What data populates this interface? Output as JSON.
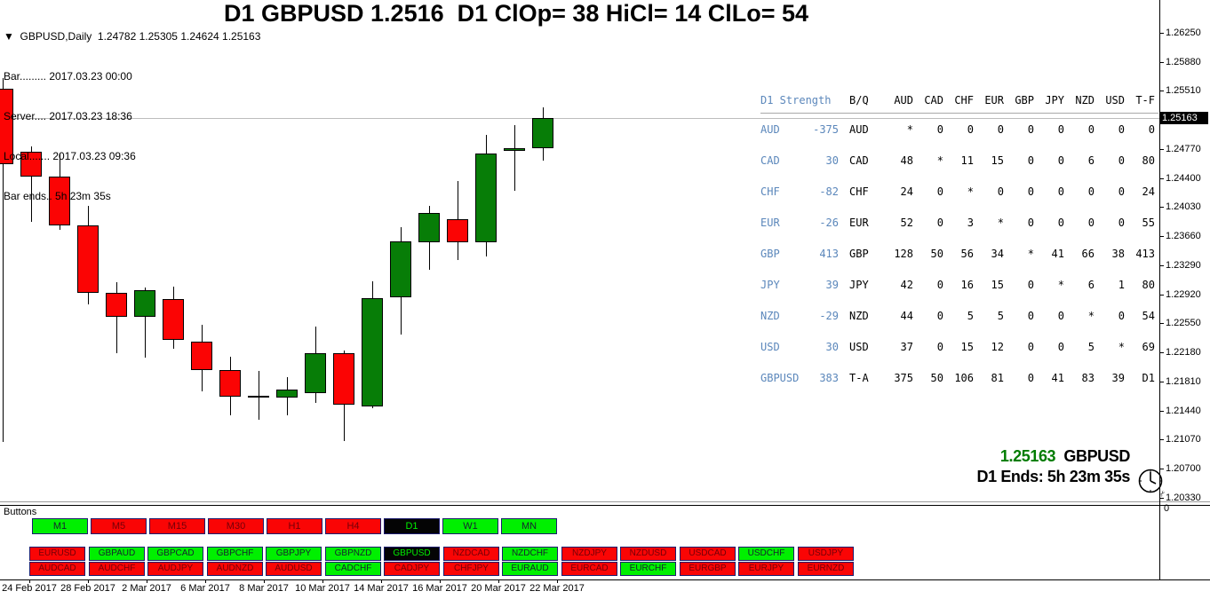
{
  "info": {
    "symbol_line": "▼  GBPUSD,Daily  1.24782 1.25305 1.24624 1.25163",
    "lines": [
      "Bar......... 2017.03.23 00:00",
      "Server.... 2017.03.23 18:36",
      "Local....... 2017.03.23 09:36",
      "Bar ends.. 5h 23m 35s"
    ]
  },
  "title": "D1 GBPUSD 1.2516  D1 ClOp= 38 HiCl= 14 ClLo= 54",
  "chart_data": {
    "type": "candlestick",
    "symbol": "GBPUSD",
    "timeframe": "Daily",
    "ohlc_current": {
      "open": 1.24782,
      "high": 1.25305,
      "low": 1.24624,
      "close": 1.25163
    },
    "y_axis": {
      "ticks": [
        "1.26250",
        "1.25880",
        "1.25510",
        "1.24770",
        "1.24400",
        "1.24030",
        "1.23660",
        "1.23290",
        "1.22920",
        "1.22550",
        "1.22180",
        "1.21810",
        "1.21440",
        "1.21070",
        "1.20700",
        "1.20330"
      ],
      "current_price": "1.25163",
      "range": [
        1.2033,
        1.2625
      ]
    },
    "x_axis": {
      "labels": [
        "24 Feb 2017",
        "28 Feb 2017",
        "2 Mar 2017",
        "6 Mar 2017",
        "8 Mar 2017",
        "10 Mar 2017",
        "14 Mar 2017",
        "16 Mar 2017",
        "20 Mar 2017",
        "22 Mar 2017"
      ]
    },
    "sub_scale_label": "0",
    "candles": [
      {
        "date": "24 Feb 2017",
        "o": 1.25538,
        "h": 1.25674,
        "l": 1.21041,
        "c": 1.24578,
        "dir": "down"
      },
      {
        "date": "27 Feb 2017",
        "o": 1.24736,
        "h": 1.24804,
        "l": 1.23844,
        "c": 1.2442,
        "dir": "down"
      },
      {
        "date": "28 Feb 2017",
        "o": 1.2442,
        "h": 1.24713,
        "l": 1.23742,
        "c": 1.23799,
        "dir": "down"
      },
      {
        "date": "1 Mar 2017",
        "o": 1.23799,
        "h": 1.24047,
        "l": 1.22793,
        "c": 1.2294,
        "dir": "down"
      },
      {
        "date": "2 Mar 2017",
        "o": 1.2294,
        "h": 1.23075,
        "l": 1.22172,
        "c": 1.22635,
        "dir": "down"
      },
      {
        "date": "3 Mar 2017",
        "o": 1.22635,
        "h": 1.23008,
        "l": 1.22115,
        "c": 1.22974,
        "dir": "up"
      },
      {
        "date": "6 Mar 2017",
        "o": 1.22861,
        "h": 1.23019,
        "l": 1.22228,
        "c": 1.22341,
        "dir": "down"
      },
      {
        "date": "7 Mar 2017",
        "o": 1.22318,
        "h": 1.22533,
        "l": 1.21686,
        "c": 1.21957,
        "dir": "down"
      },
      {
        "date": "8 Mar 2017",
        "o": 1.21957,
        "h": 1.22127,
        "l": 1.2138,
        "c": 1.21618,
        "dir": "down"
      },
      {
        "date": "9 Mar 2017",
        "o": 1.21629,
        "h": 1.21945,
        "l": 1.21324,
        "c": 1.21629,
        "dir": "doji"
      },
      {
        "date": "10 Mar 2017",
        "o": 1.21606,
        "h": 1.21866,
        "l": 1.2138,
        "c": 1.21708,
        "dir": "up"
      },
      {
        "date": "13 Mar 2017",
        "o": 1.21663,
        "h": 1.2251,
        "l": 1.21539,
        "c": 1.22172,
        "dir": "up"
      },
      {
        "date": "14 Mar 2017",
        "o": 1.22172,
        "h": 1.22205,
        "l": 1.21053,
        "c": 1.21516,
        "dir": "down"
      },
      {
        "date": "15 Mar 2017",
        "o": 1.21494,
        "h": 1.23087,
        "l": 1.21471,
        "c": 1.22872,
        "dir": "up"
      },
      {
        "date": "16 Mar 2017",
        "o": 1.22883,
        "h": 1.23776,
        "l": 1.22409,
        "c": 1.23595,
        "dir": "up"
      },
      {
        "date": "17 Mar 2017",
        "o": 1.23584,
        "h": 1.24047,
        "l": 1.23234,
        "c": 1.23957,
        "dir": "up"
      },
      {
        "date": "20 Mar 2017",
        "o": 1.23878,
        "h": 1.24363,
        "l": 1.23358,
        "c": 1.23584,
        "dir": "down"
      },
      {
        "date": "21 Mar 2017",
        "o": 1.23584,
        "h": 1.2495,
        "l": 1.23403,
        "c": 1.24713,
        "dir": "up"
      },
      {
        "date": "22 Mar 2017",
        "o": 1.24747,
        "h": 1.25075,
        "l": 1.24239,
        "c": 1.24781,
        "dir": "up"
      },
      {
        "date": "23 Mar 2017",
        "o": 1.24782,
        "h": 1.25305,
        "l": 1.24624,
        "c": 1.25163,
        "dir": "up"
      }
    ]
  },
  "strength_table": {
    "header": [
      "D1 Strength",
      "B/Q",
      "AUD",
      "CAD",
      "CHF",
      "EUR",
      "GBP",
      "JPY",
      "NZD",
      "USD",
      "T-F"
    ],
    "rows": [
      {
        "cur": "AUD",
        "strength": "-375",
        "bq": "AUD",
        "cells": [
          "*",
          "0",
          "0",
          "0",
          "0",
          "0",
          "0",
          "0",
          "0"
        ]
      },
      {
        "cur": "CAD",
        "strength": "30",
        "bq": "CAD",
        "cells": [
          "48",
          "*",
          "11",
          "15",
          "0",
          "0",
          "6",
          "0",
          "80"
        ]
      },
      {
        "cur": "CHF",
        "strength": "-82",
        "bq": "CHF",
        "cells": [
          "24",
          "0",
          "*",
          "0",
          "0",
          "0",
          "0",
          "0",
          "24"
        ]
      },
      {
        "cur": "EUR",
        "strength": "-26",
        "bq": "EUR",
        "cells": [
          "52",
          "0",
          "3",
          "*",
          "0",
          "0",
          "0",
          "0",
          "55"
        ]
      },
      {
        "cur": "GBP",
        "strength": "413",
        "bq": "GBP",
        "cells": [
          "128",
          "50",
          "56",
          "34",
          "*",
          "41",
          "66",
          "38",
          "413"
        ]
      },
      {
        "cur": "JPY",
        "strength": "39",
        "bq": "JPY",
        "cells": [
          "42",
          "0",
          "16",
          "15",
          "0",
          "*",
          "6",
          "1",
          "80"
        ]
      },
      {
        "cur": "NZD",
        "strength": "-29",
        "bq": "NZD",
        "cells": [
          "44",
          "0",
          "5",
          "5",
          "0",
          "0",
          "*",
          "0",
          "54"
        ]
      },
      {
        "cur": "USD",
        "strength": "30",
        "bq": "USD",
        "cells": [
          "37",
          "0",
          "15",
          "12",
          "0",
          "0",
          "5",
          "*",
          "69"
        ]
      },
      {
        "cur": "GBPUSD",
        "strength": "383",
        "bq": "T-A",
        "cells": [
          "375",
          "50",
          "106",
          "81",
          "0",
          "41",
          "83",
          "39",
          "D1"
        ]
      }
    ]
  },
  "overlay_br": {
    "price": "1.25163",
    "symbol": "GBPUSD",
    "countdown": "D1 Ends: 5h 23m 35s"
  },
  "buttons_panel": {
    "label": "Buttons",
    "timeframes": [
      {
        "label": "M1",
        "state": "green"
      },
      {
        "label": "M5",
        "state": "red"
      },
      {
        "label": "M15",
        "state": "red"
      },
      {
        "label": "M30",
        "state": "red"
      },
      {
        "label": "H1",
        "state": "red"
      },
      {
        "label": "H4",
        "state": "red"
      },
      {
        "label": "D1",
        "state": "black"
      },
      {
        "label": "W1",
        "state": "green"
      },
      {
        "label": "MN",
        "state": "green"
      }
    ],
    "pairs_row1": [
      {
        "label": "EURUSD",
        "state": "red"
      },
      {
        "label": "GBPAUD",
        "state": "green"
      },
      {
        "label": "GBPCAD",
        "state": "green"
      },
      {
        "label": "GBPCHF",
        "state": "green"
      },
      {
        "label": "GBPJPY",
        "state": "green"
      },
      {
        "label": "GBPNZD",
        "state": "green"
      },
      {
        "label": "GBPUSD",
        "state": "black"
      },
      {
        "label": "NZDCAD",
        "state": "red"
      },
      {
        "label": "NZDCHF",
        "state": "green"
      },
      {
        "label": "NZDJPY",
        "state": "red"
      },
      {
        "label": "NZDUSD",
        "state": "red"
      },
      {
        "label": "USDCAD",
        "state": "red"
      },
      {
        "label": "USDCHF",
        "state": "green"
      },
      {
        "label": "USDJPY",
        "state": "red"
      }
    ],
    "pairs_row2": [
      {
        "label": "AUDCAD",
        "state": "red"
      },
      {
        "label": "AUDCHF",
        "state": "red"
      },
      {
        "label": "AUDJPY",
        "state": "red"
      },
      {
        "label": "AUDNZD",
        "state": "red"
      },
      {
        "label": "AUDUSD",
        "state": "red"
      },
      {
        "label": "CADCHF",
        "state": "green"
      },
      {
        "label": "CADJPY",
        "state": "red"
      },
      {
        "label": "CHFJPY",
        "state": "red"
      },
      {
        "label": "EURAUD",
        "state": "green"
      },
      {
        "label": "EURCAD",
        "state": "red"
      },
      {
        "label": "EURCHF",
        "state": "green"
      },
      {
        "label": "EURGBP",
        "state": "red"
      },
      {
        "label": "EURJPY",
        "state": "red"
      },
      {
        "label": "EURNZD",
        "state": "red"
      }
    ]
  },
  "colors": {
    "candle_up": "#077d07",
    "candle_down": "#fb0404",
    "candle_doji": "#000000",
    "title_green": "#00ff00",
    "table_blue": "#5b87bb",
    "price_line": "#bdbdbd"
  }
}
